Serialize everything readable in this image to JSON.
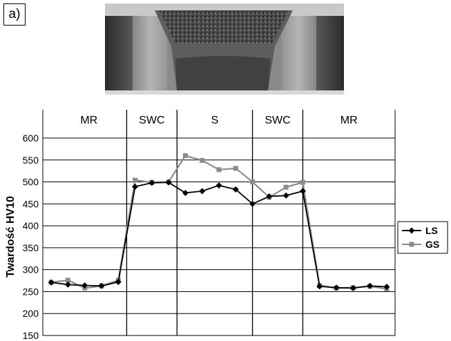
{
  "panel_label": "a)",
  "photo": {
    "kind": "weld macro cross-section photograph"
  },
  "chart_data": {
    "type": "line",
    "title": "",
    "xlabel": "",
    "ylabel": "Twardość HV10",
    "ylim": [
      150,
      600
    ],
    "yticks": [
      150,
      200,
      250,
      300,
      350,
      400,
      450,
      500,
      550,
      600
    ],
    "grid": true,
    "legend_position": "right",
    "zones": [
      {
        "label": "MR",
        "from": 0,
        "to": 4.5
      },
      {
        "label": "SWC",
        "from": 4.5,
        "to": 7.5
      },
      {
        "label": "S",
        "from": 7.5,
        "to": 12
      },
      {
        "label": "SWC",
        "from": 12,
        "to": 15
      },
      {
        "label": "MR",
        "from": 15,
        "to": 20.5
      }
    ],
    "x_range": [
      -0.5,
      20.5
    ],
    "series": [
      {
        "name": "LS",
        "color": "#000000",
        "marker": "diamond",
        "points": [
          [
            0,
            271
          ],
          [
            1,
            266
          ],
          [
            2,
            264
          ],
          [
            3,
            263
          ],
          [
            4,
            272
          ],
          [
            5,
            489
          ],
          [
            6,
            498
          ],
          [
            7,
            499
          ],
          [
            8,
            475
          ],
          [
            9,
            479
          ],
          [
            10,
            492
          ],
          [
            11,
            483
          ],
          [
            12,
            450
          ],
          [
            13,
            467
          ],
          [
            14,
            469
          ],
          [
            15,
            479
          ],
          [
            16,
            262
          ],
          [
            17,
            259
          ],
          [
            18,
            258
          ],
          [
            19,
            263
          ],
          [
            20,
            261
          ]
        ]
      },
      {
        "name": "GS",
        "color": "#8c8c8c",
        "marker": "square",
        "points": [
          [
            0,
            271
          ],
          [
            1,
            276
          ],
          [
            2,
            258
          ],
          [
            3,
            263
          ],
          [
            4,
            276
          ],
          [
            5,
            504
          ],
          [
            6,
            499
          ],
          [
            7,
            500
          ],
          [
            8,
            560
          ],
          [
            9,
            549
          ],
          [
            10,
            528
          ],
          [
            11,
            531
          ],
          [
            12,
            500
          ],
          [
            13,
            465
          ],
          [
            14,
            488
          ],
          [
            15,
            499
          ],
          [
            16,
            264
          ],
          [
            17,
            258
          ],
          [
            18,
            259
          ],
          [
            19,
            262
          ],
          [
            20,
            256
          ]
        ]
      }
    ]
  }
}
